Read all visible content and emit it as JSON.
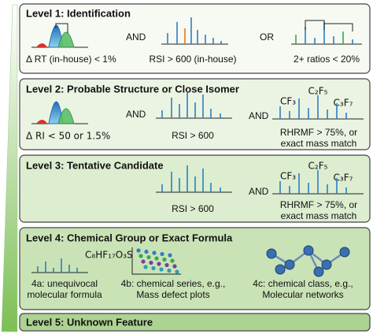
{
  "levels": [
    {
      "title": "Level 1: Identification",
      "labels": [
        "Δ RT (in-house) < 1%",
        "AND",
        "RSI > 600 (in-house)",
        "OR",
        "2+ ratios < 20%"
      ]
    },
    {
      "title": "Level 2: Probable Structure or Close Isomer",
      "labels": [
        "Δ RI < 50 or 1.5%",
        "AND",
        "RSI > 600",
        "AND",
        "CF₃",
        "C₂F₅",
        "C₃F₇",
        "RHRMF > 75%, or",
        "exact mass match"
      ]
    },
    {
      "title": "Level 3: Tentative Candidate",
      "labels": [
        "RSI > 600",
        "AND",
        "CF₃",
        "C₂F₅",
        "C₃F₇",
        "RHRMF > 75%, or",
        "exact mass match"
      ]
    },
    {
      "title": "Level 4: Chemical Group or Exact Formula",
      "labels": [
        "C₈HF₁₇O₃S",
        "4a: unequivocal",
        "molecular formula",
        "4b: chemical series, e.g.,",
        "Mass defect plots",
        "4c: chemical class, e.g.,",
        "Molecular networks"
      ]
    },
    {
      "title": "Level 5: Unknown Feature",
      "labels": []
    }
  ]
}
